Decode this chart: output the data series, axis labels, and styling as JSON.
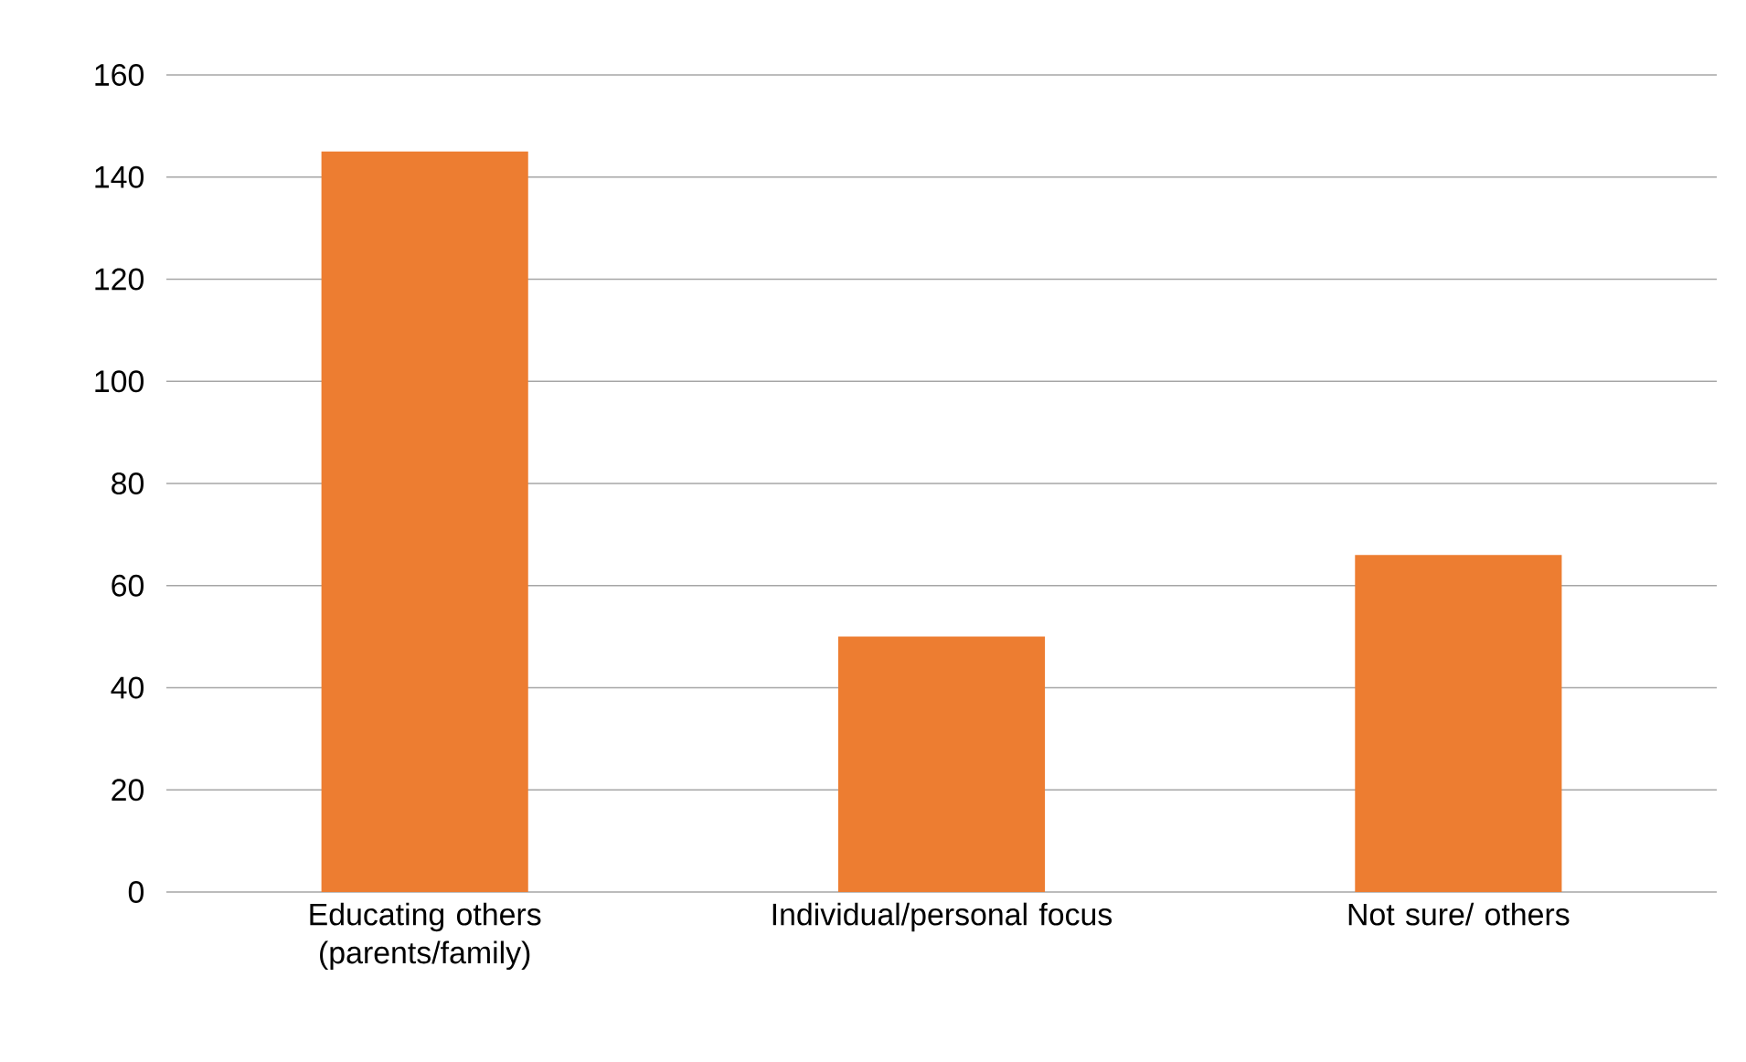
{
  "chart_data": {
    "type": "bar",
    "categories": [
      "Educating others (parents/family)",
      "Individual/personal focus",
      "Not sure/ others"
    ],
    "values": [
      145,
      50,
      66
    ],
    "color": "#ed7d31",
    "ylim": [
      0,
      160
    ],
    "yticks": [
      0,
      20,
      40,
      60,
      80,
      100,
      120,
      140,
      160
    ],
    "grid": "y"
  }
}
